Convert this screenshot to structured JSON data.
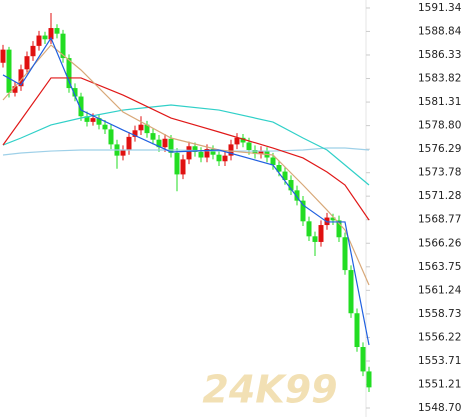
{
  "chart_data": {
    "type": "candlestick",
    "watermark": "24K99",
    "up_color": "#e01010",
    "down_color": "#22dd22",
    "ylim": [
      1547.74,
      1592.19
    ],
    "yticks": [
      1591.34,
      1588.84,
      1586.33,
      1583.82,
      1581.31,
      {
        "value": 1578.8,
        "label": "1578.80"
      },
      1576.29,
      1573.78,
      1571.28,
      1568.77,
      1566.26,
      1563.75,
      1561.24,
      1558.73,
      1556.22,
      1553.71,
      1551.21,
      {
        "value": 1548.7,
        "label": "1548.70"
      }
    ],
    "open": [
      1585.5,
      1586.9,
      1582.3,
      1583.0,
      1584.8,
      1586.2,
      1587.3,
      1588.4,
      1588.0,
      1589.2,
      1588.6,
      1586.0,
      1582.8,
      1581.9,
      1579.8,
      1579.2,
      1579.6,
      1578.9,
      1578.4,
      1576.8,
      1575.6,
      1576.2,
      1577.6,
      1578.3,
      1578.9,
      1578.0,
      1577.3,
      1576.5,
      1577.4,
      1575.9,
      1573.6,
      1575.2,
      1576.6,
      1576.0,
      1575.4,
      1576.3,
      1575.7,
      1575.0,
      1575.6,
      1576.8,
      1577.5,
      1577.0,
      1576.2,
      1575.8,
      1576.1,
      1575.4,
      1574.6,
      1573.9,
      1573.0,
      1571.9,
      1570.8,
      1568.6,
      1567.0,
      1566.4,
      1568.2,
      1569.0,
      1568.7,
      1566.9,
      1563.4,
      1558.8,
      1555.2,
      1552.6
    ],
    "high": [
      1587.4,
      1587.2,
      1583.5,
      1585.3,
      1586.7,
      1587.8,
      1588.9,
      1588.8,
      1590.8,
      1589.6,
      1589.0,
      1586.4,
      1583.3,
      1582.3,
      1580.3,
      1580.1,
      1580.0,
      1579.4,
      1578.9,
      1577.3,
      1576.7,
      1578.1,
      1578.8,
      1579.8,
      1579.3,
      1578.5,
      1577.8,
      1577.9,
      1577.8,
      1576.4,
      1575.7,
      1577.1,
      1577.0,
      1576.5,
      1576.8,
      1576.7,
      1576.2,
      1576.1,
      1577.3,
      1578.0,
      1577.9,
      1577.5,
      1576.7,
      1576.6,
      1576.5,
      1575.9,
      1575.1,
      1574.4,
      1573.5,
      1572.4,
      1571.3,
      1569.1,
      1567.5,
      1568.7,
      1569.5,
      1569.4,
      1569.2,
      1567.4,
      1563.9,
      1559.3,
      1555.7,
      1553.1
    ],
    "low": [
      1585.0,
      1581.8,
      1581.9,
      1582.5,
      1584.3,
      1585.7,
      1586.8,
      1587.5,
      1587.5,
      1588.1,
      1585.5,
      1582.3,
      1581.4,
      1579.3,
      1578.7,
      1578.8,
      1578.4,
      1577.9,
      1576.3,
      1574.2,
      1575.1,
      1575.7,
      1577.1,
      1577.8,
      1577.5,
      1576.8,
      1576.0,
      1576.0,
      1575.4,
      1571.8,
      1573.1,
      1574.7,
      1575.5,
      1574.9,
      1574.9,
      1575.2,
      1574.5,
      1574.5,
      1575.1,
      1576.3,
      1576.5,
      1575.7,
      1575.3,
      1575.3,
      1574.9,
      1574.1,
      1573.4,
      1572.5,
      1571.4,
      1570.3,
      1568.1,
      1566.5,
      1564.9,
      1565.9,
      1567.7,
      1568.2,
      1566.4,
      1562.9,
      1558.3,
      1554.7,
      1552.1,
      1550.4
    ],
    "close": [
      1586.9,
      1582.3,
      1583.0,
      1584.8,
      1586.2,
      1587.3,
      1588.4,
      1588.0,
      1589.2,
      1588.6,
      1586.0,
      1582.8,
      1581.9,
      1579.8,
      1579.2,
      1579.6,
      1578.9,
      1578.4,
      1576.8,
      1575.6,
      1576.2,
      1577.6,
      1578.3,
      1578.9,
      1578.0,
      1577.3,
      1576.5,
      1577.4,
      1575.9,
      1573.6,
      1575.2,
      1576.6,
      1576.0,
      1575.4,
      1576.3,
      1575.7,
      1575.0,
      1575.6,
      1576.8,
      1577.5,
      1577.0,
      1576.2,
      1575.8,
      1576.1,
      1575.4,
      1574.6,
      1573.9,
      1573.0,
      1571.9,
      1570.8,
      1568.6,
      1567.0,
      1566.4,
      1568.2,
      1569.0,
      1568.7,
      1566.9,
      1563.4,
      1558.8,
      1555.2,
      1552.6,
      1550.9
    ],
    "lines": [
      {
        "color": "#9ed0e8",
        "x": [
          0,
          3,
          8,
          13,
          20,
          28,
          36,
          45,
          50,
          54,
          57,
          61
        ],
        "values": [
          1575.67,
          1575.88,
          1576.09,
          1576.2,
          1576.2,
          1576.2,
          1576.09,
          1576.09,
          1576.2,
          1576.41,
          1576.41,
          1576.2
        ]
      },
      {
        "color": "#30d0c8",
        "x": [
          0,
          3,
          8,
          13,
          20,
          28,
          36,
          45,
          50,
          54,
          57,
          61
        ],
        "values": [
          1576.73,
          1577.48,
          1578.87,
          1579.61,
          1580.46,
          1581.0,
          1580.46,
          1579.18,
          1577.48,
          1576.2,
          1574.6,
          1572.47
        ]
      },
      {
        "color": "#e01818",
        "x": [
          0,
          3,
          8,
          13,
          20,
          28,
          36,
          45,
          50,
          54,
          57,
          61
        ],
        "values": [
          1576.73,
          1579.4,
          1583.88,
          1583.88,
          1582.06,
          1579.61,
          1578.12,
          1576.41,
          1575.35,
          1573.86,
          1572.47,
          1568.74
        ]
      },
      {
        "color": "#d8a878",
        "x": [
          0,
          3,
          8,
          13,
          20,
          28,
          36,
          45,
          50,
          54,
          57,
          61
        ],
        "values": [
          1581.53,
          1583.66,
          1587.39,
          1584.73,
          1580.25,
          1577.48,
          1576.2,
          1575.67,
          1572.47,
          1569.8,
          1567.67,
          1561.81
        ]
      },
      {
        "color": "#2060e0",
        "x": [
          0,
          3,
          8,
          13,
          20,
          28,
          36,
          45,
          50,
          54,
          57,
          61
        ],
        "values": [
          1584.2,
          1583.13,
          1588.14,
          1580.46,
          1578.33,
          1575.99,
          1576.2,
          1574.6,
          1570.34,
          1568.53,
          1568.53,
          1555.41
        ]
      }
    ]
  }
}
